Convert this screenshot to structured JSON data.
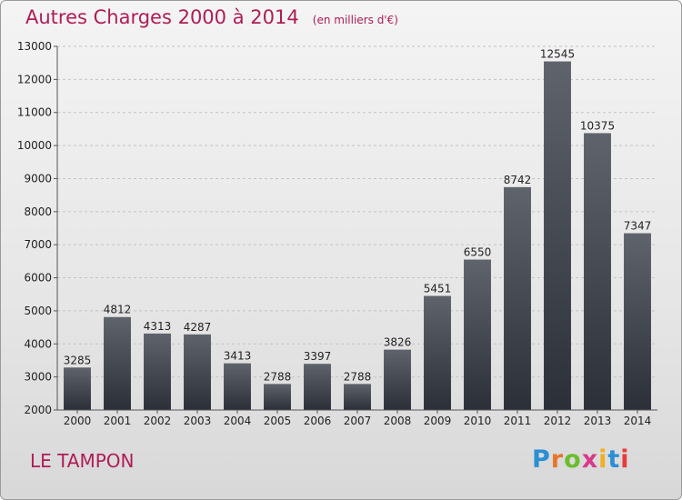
{
  "header": {
    "title": "Autres Charges 2000 à 2014",
    "unit": "(en milliers d'€)"
  },
  "footer": {
    "commune": "LE TAMPON",
    "logo_text": "Proxiti",
    "logo_colors": [
      "#2a8fd4",
      "#e8762b",
      "#6cbd2c",
      "#d83a8a",
      "#f0b020",
      "#2a8fd4",
      "#e83a3a"
    ]
  },
  "colors": {
    "accent": "#b01c56",
    "bar_top": "#5f646c",
    "bar_bottom": "#2b3038"
  },
  "chart_data": {
    "type": "bar",
    "title": "Autres Charges 2000 à 2014",
    "subtitle": "(en milliers d'€)",
    "categories": [
      "2000",
      "2001",
      "2002",
      "2003",
      "2004",
      "2005",
      "2006",
      "2007",
      "2008",
      "2009",
      "2010",
      "2011",
      "2012",
      "2013",
      "2014"
    ],
    "values": [
      3285,
      4812,
      4313,
      4287,
      3413,
      2788,
      3397,
      2788,
      3826,
      5451,
      6550,
      8742,
      12545,
      10375,
      7347
    ],
    "value_labels": [
      "3285",
      "4812",
      "4313",
      "4287",
      "3413",
      "2788",
      "3397",
      "2788",
      "3826",
      "5451",
      "6550",
      "8742",
      "12545",
      "10375",
      "7347"
    ],
    "ylim": [
      2000,
      13000
    ],
    "yticks": [
      2000,
      3000,
      4000,
      5000,
      6000,
      7000,
      8000,
      9000,
      10000,
      11000,
      12000,
      13000
    ],
    "ytick_labels": [
      "2000",
      "3000",
      "4000",
      "5000",
      "6000",
      "7000",
      "8000",
      "9000",
      "10000",
      "11000",
      "12000",
      "13000"
    ],
    "grid": true,
    "legend": "none"
  }
}
